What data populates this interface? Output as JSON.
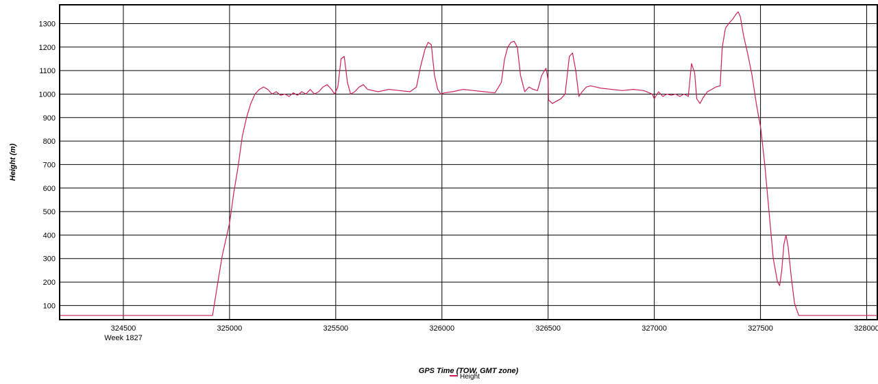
{
  "chart_data": {
    "type": "line",
    "xlabel": "GPS Time (TOW, GMT zone)",
    "ylabel": "Height (m)",
    "week_label": "Week 1827",
    "xlim": [
      324200,
      328050
    ],
    "ylim": [
      40,
      1380
    ],
    "x_ticks": [
      324500,
      325000,
      325500,
      326000,
      326500,
      327000,
      327500,
      328000
    ],
    "y_ticks": [
      100,
      200,
      300,
      400,
      500,
      600,
      700,
      800,
      900,
      1000,
      1100,
      1200,
      1300
    ],
    "grid": true,
    "legend_position": "bottom-center",
    "colors": {
      "series": "#cc1f55",
      "grid": "#000000",
      "frame": "#000000"
    },
    "series": [
      {
        "name": "Height",
        "x": [
          324200,
          324920,
          324945,
          324965,
          324985,
          325000,
          325020,
          325040,
          325060,
          325080,
          325100,
          325120,
          325140,
          325160,
          325180,
          325200,
          325220,
          325240,
          325260,
          325280,
          325300,
          325320,
          325340,
          325360,
          325380,
          325400,
          325420,
          325440,
          325460,
          325480,
          325495,
          325510,
          325525,
          325540,
          325555,
          325570,
          325590,
          325610,
          325630,
          325650,
          325700,
          325750,
          325800,
          325850,
          325880,
          325900,
          325920,
          325935,
          325950,
          325965,
          325980,
          325995,
          326010,
          326050,
          326100,
          326150,
          326200,
          326250,
          326280,
          326295,
          326310,
          326325,
          326340,
          326355,
          326370,
          326390,
          326410,
          326430,
          326450,
          326470,
          326490,
          326500,
          326502,
          326520,
          326540,
          326560,
          326580,
          326600,
          326615,
          326630,
          326645,
          326660,
          326680,
          326700,
          326750,
          326800,
          326850,
          326900,
          326950,
          326990,
          327000,
          327020,
          327040,
          327060,
          327080,
          327100,
          327120,
          327140,
          327160,
          327175,
          327190,
          327200,
          327215,
          327230,
          327250,
          327270,
          327290,
          327310,
          327320,
          327335,
          327350,
          327370,
          327385,
          327395,
          327405,
          327420,
          327440,
          327460,
          327480,
          327500,
          327503,
          327520,
          327540,
          327560,
          327580,
          327590,
          327600,
          327610,
          327620,
          327630,
          327645,
          327660,
          327680,
          327700,
          328050
        ],
        "values": [
          58,
          58,
          200,
          310,
          390,
          450,
          580,
          690,
          820,
          900,
          960,
          1000,
          1020,
          1030,
          1020,
          1000,
          1010,
          995,
          1000,
          990,
          1005,
          995,
          1010,
          1000,
          1020,
          1000,
          1010,
          1030,
          1040,
          1020,
          1000,
          1030,
          1150,
          1160,
          1050,
          1000,
          1010,
          1030,
          1040,
          1020,
          1010,
          1020,
          1015,
          1010,
          1030,
          1120,
          1190,
          1220,
          1210,
          1080,
          1020,
          1000,
          1005,
          1010,
          1020,
          1015,
          1010,
          1005,
          1050,
          1150,
          1200,
          1220,
          1225,
          1200,
          1080,
          1010,
          1030,
          1020,
          1015,
          1080,
          1110,
          1060,
          975,
          960,
          970,
          980,
          1000,
          1160,
          1175,
          1100,
          990,
          1010,
          1030,
          1035,
          1025,
          1020,
          1015,
          1020,
          1015,
          1000,
          980,
          1010,
          990,
          1000,
          995,
          1000,
          990,
          1000,
          990,
          1130,
          1090,
          980,
          960,
          985,
          1010,
          1020,
          1030,
          1035,
          1200,
          1280,
          1300,
          1320,
          1340,
          1350,
          1330,
          1250,
          1170,
          1080,
          960,
          860,
          840,
          700,
          500,
          300,
          200,
          185,
          250,
          360,
          400,
          350,
          220,
          110,
          58,
          58,
          58
        ]
      }
    ]
  }
}
